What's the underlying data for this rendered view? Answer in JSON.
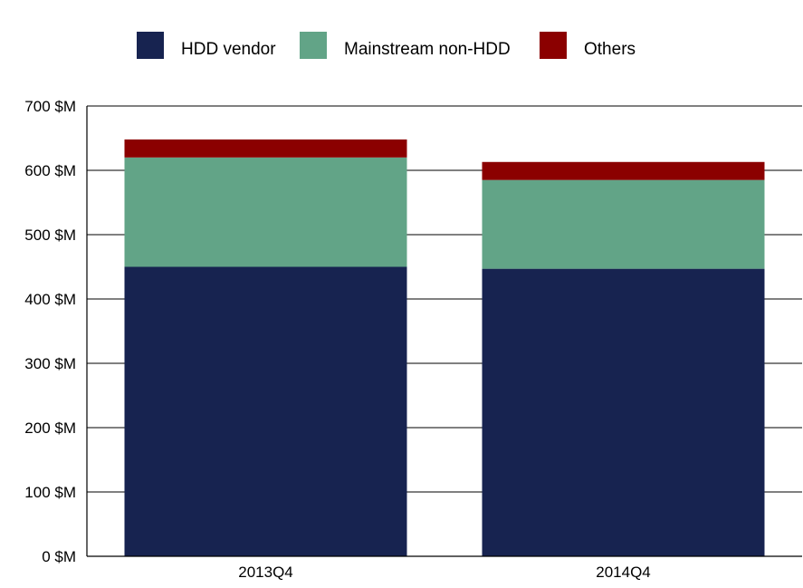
{
  "chart_data": {
    "type": "bar",
    "stacked": true,
    "categories": [
      "2013Q4",
      "2014Q4"
    ],
    "series": [
      {
        "name": "HDD vendor",
        "color": "#172350",
        "values": [
          450,
          447
        ]
      },
      {
        "name": "Mainstream non-HDD",
        "color": "#62a487",
        "values": [
          170,
          138
        ]
      },
      {
        "name": "Others",
        "color": "#8b0000",
        "values": [
          28,
          28
        ]
      }
    ],
    "y_ticks": [
      {
        "value": 0,
        "label": "0 $M"
      },
      {
        "value": 100,
        "label": "100 $M"
      },
      {
        "value": 200,
        "label": "200 $M"
      },
      {
        "value": 300,
        "label": "300 $M"
      },
      {
        "value": 400,
        "label": "400 $M"
      },
      {
        "value": 500,
        "label": "500 $M"
      },
      {
        "value": 600,
        "label": "600 $M"
      },
      {
        "value": 700,
        "label": "700 $M"
      }
    ],
    "ylim": [
      0,
      700
    ],
    "grid": true,
    "legend_position": "top-center"
  }
}
